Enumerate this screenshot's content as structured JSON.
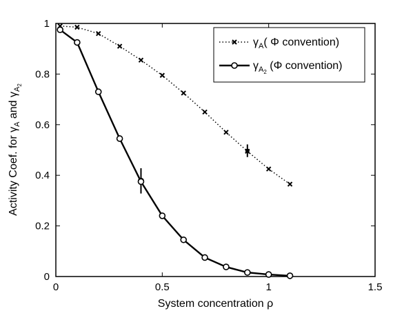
{
  "chart_data": {
    "type": "line",
    "xlabel": {
      "text": "System concentration ",
      "symbol": "ρ"
    },
    "ylabel": {
      "prefix": "Activity  Coef. for ",
      "g1": "γ",
      "g1_sub": "A",
      "mid": " and ",
      "g2": "γ",
      "g2_sub": "A",
      "g2_subsub": "2"
    },
    "xlim": [
      0,
      1.5
    ],
    "ylim": [
      0,
      1
    ],
    "xticks": [
      0,
      0.5,
      1,
      1.5
    ],
    "xtick_labels": [
      "0",
      "0.5",
      "1",
      "1.5"
    ],
    "yticks": [
      0,
      0.2,
      0.4,
      0.6,
      0.8,
      1
    ],
    "ytick_labels": [
      "0",
      "0.2",
      "0.4",
      "0.6",
      "0.8",
      "1"
    ],
    "grid": false,
    "legend_position": "top-right",
    "series": [
      {
        "name": "γA( Φ convention)",
        "legend": {
          "g": "γ",
          "sub": "A",
          "subsub": "",
          "rest": "( Φ convention)"
        },
        "color": "#000000",
        "line_style": "dotted",
        "marker": "x",
        "x": [
          0.02,
          0.1,
          0.2,
          0.3,
          0.4,
          0.5,
          0.6,
          0.7,
          0.8,
          0.9,
          1.0,
          1.1
        ],
        "y": [
          0.99,
          0.985,
          0.96,
          0.91,
          0.855,
          0.795,
          0.725,
          0.65,
          0.57,
          0.495,
          0.425,
          0.365
        ],
        "error_bars": [
          {
            "x": 0.9,
            "y": 0.497,
            "err": 0.025
          }
        ]
      },
      {
        "name": "γA2 (Φ convention)",
        "legend": {
          "g": "γ",
          "sub": "A",
          "subsub": "2",
          "rest": " (Φ convention)"
        },
        "color": "#000000",
        "line_style": "solid",
        "marker": "o",
        "x": [
          0.02,
          0.1,
          0.2,
          0.3,
          0.4,
          0.5,
          0.6,
          0.7,
          0.8,
          0.9,
          1.0,
          1.1
        ],
        "y": [
          0.975,
          0.925,
          0.73,
          0.545,
          0.375,
          0.24,
          0.145,
          0.075,
          0.038,
          0.016,
          0.008,
          0.003
        ],
        "error_bars": [
          {
            "x": 0.4,
            "y": 0.378,
            "err": 0.05
          }
        ]
      }
    ]
  }
}
